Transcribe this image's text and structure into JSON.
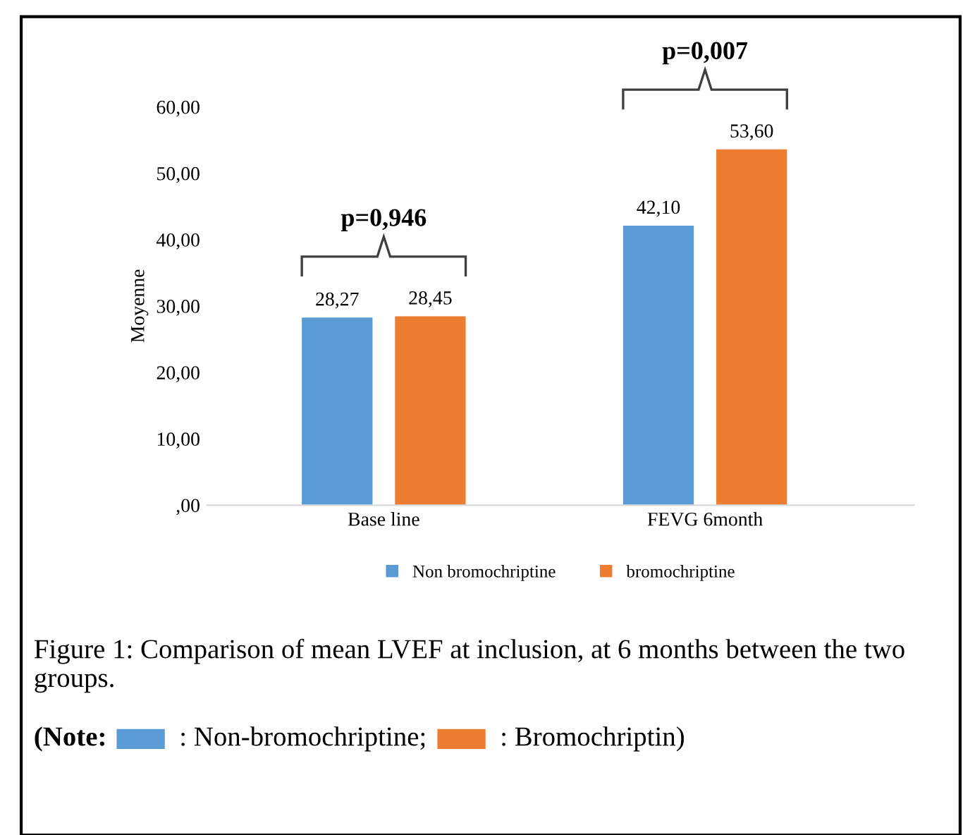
{
  "chart_data": {
    "type": "bar",
    "categories": [
      "Base line",
      "FEVG 6month"
    ],
    "ylabel": "Moyenne",
    "series": [
      {
        "name": "Non bromochriptine",
        "color": "#5b9bd5",
        "values": [
          28.27,
          42.1
        ],
        "value_labels": [
          "28,27",
          "42,10"
        ]
      },
      {
        "name": "bromochriptine",
        "color": "#ed7d31",
        "values": [
          28.45,
          53.6
        ],
        "value_labels": [
          "28,45",
          "53,60"
        ]
      }
    ],
    "ylim": [
      0,
      60
    ],
    "yticks": [
      {
        "value": 0,
        "label": ",00"
      },
      {
        "value": 10,
        "label": "10,00"
      },
      {
        "value": 20,
        "label": "20,00"
      },
      {
        "value": 30,
        "label": "30,00"
      },
      {
        "value": 40,
        "label": "40,00"
      },
      {
        "value": 50,
        "label": "50,00"
      },
      {
        "value": 60,
        "label": "60,00"
      }
    ],
    "grid": false,
    "legend": "bottom",
    "annotations": [
      "p=0,946",
      "p=0,007",
      "Figure 1: Comparison of mean LVEF at inclusion, at 6 months between the two groups.",
      "(Note:",
      ": Non-bromochriptine;",
      ": Bromochriptin)"
    ]
  }
}
